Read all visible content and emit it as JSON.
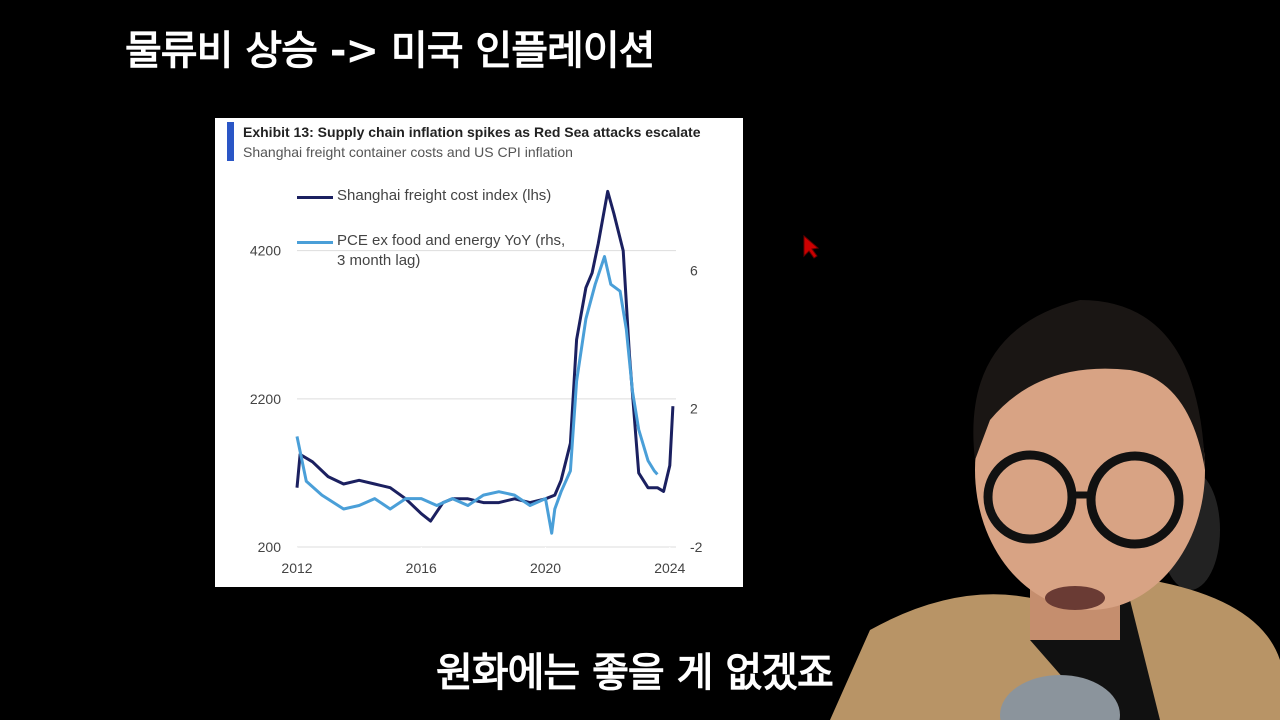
{
  "caption": "물류비 상승 -> 미국 인플레이션",
  "subtitle": "원화에는 좋을 게 없겠죠",
  "chart_data": {
    "type": "line",
    "title": "Exhibit 13: Supply chain inflation spikes as Red Sea attacks escalate",
    "subtitle": "Shanghai freight container costs and US CPI inflation",
    "xlim": [
      2012,
      2024.2
    ],
    "xticks": [
      2012,
      2016,
      2020,
      2024
    ],
    "ylim": [
      200,
      5100
    ],
    "yticks": [
      200,
      2200,
      4200
    ],
    "y2lim": [
      -2,
      8.5
    ],
    "y2ticks": [
      -2,
      2,
      6
    ],
    "grid": true,
    "series": [
      {
        "name": "Shanghai freight cost index (lhs)",
        "color": "#1b2060",
        "x": [
          2012.0,
          2012.1,
          2012.5,
          2013.0,
          2013.5,
          2014.0,
          2014.5,
          2015.0,
          2015.5,
          2016.0,
          2016.3,
          2016.7,
          2017.0,
          2017.5,
          2018.0,
          2018.5,
          2019.0,
          2019.5,
          2020.0,
          2020.3,
          2020.5,
          2020.8,
          2021.0,
          2021.3,
          2021.5,
          2021.7,
          2022.0,
          2022.2,
          2022.5,
          2022.7,
          2023.0,
          2023.3,
          2023.6,
          2023.8,
          2024.0,
          2024.1
        ],
        "values": [
          1000,
          1450,
          1350,
          1150,
          1050,
          1100,
          1050,
          1000,
          850,
          650,
          550,
          800,
          850,
          850,
          800,
          800,
          850,
          800,
          850,
          900,
          1100,
          1600,
          3000,
          3700,
          3900,
          4300,
          5000,
          4700,
          4200,
          2800,
          1200,
          1000,
          1000,
          950,
          1300,
          2100
        ]
      },
      {
        "name": "PCE ex food and energy YoY (rhs, 3 month lag)",
        "color": "#4a9fd8",
        "axis": "y2",
        "x": [
          2012.0,
          2012.3,
          2012.8,
          2013.5,
          2014.0,
          2014.5,
          2015.0,
          2015.5,
          2016.0,
          2016.5,
          2017.0,
          2017.5,
          2018.0,
          2018.5,
          2019.0,
          2019.5,
          2020.0,
          2020.2,
          2020.3,
          2020.5,
          2020.8,
          2021.0,
          2021.3,
          2021.6,
          2021.9,
          2022.1,
          2022.4,
          2022.6,
          2022.8,
          2023.0,
          2023.3,
          2023.5,
          2023.6
        ],
        "values": [
          1.2,
          -0.1,
          -0.5,
          -0.9,
          -0.8,
          -0.6,
          -0.9,
          -0.6,
          -0.6,
          -0.8,
          -0.6,
          -0.8,
          -0.5,
          -0.4,
          -0.5,
          -0.8,
          -0.6,
          -1.6,
          -0.9,
          -0.4,
          0.2,
          2.8,
          4.6,
          5.6,
          6.4,
          5.6,
          5.4,
          4.3,
          2.5,
          1.4,
          0.5,
          0.2,
          0.1
        ]
      }
    ]
  }
}
